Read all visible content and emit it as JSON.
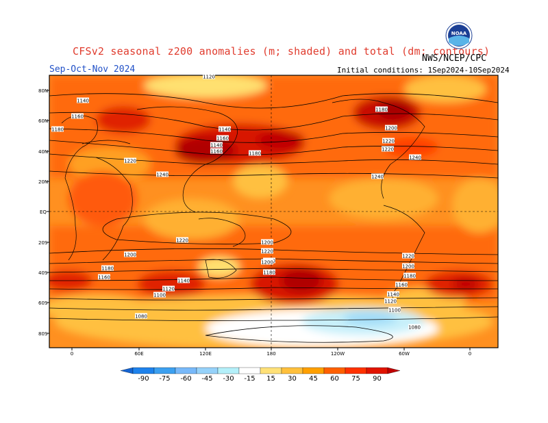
{
  "header": {
    "title": "CFSv2 seasonal z200 anomalies (m; shaded) and total (dm; contours)",
    "season": "Sep-Oct-Nov 2024",
    "initial_conditions": "Initial conditions: 1Sep2024-10Sep2024",
    "agency": "NWS/NCEP/CPC",
    "logo_text": "NOAA"
  },
  "map": {
    "lat_labels": [
      "80N",
      "60N",
      "40N",
      "20N",
      "EQ",
      "20S",
      "40S",
      "60S",
      "80S"
    ],
    "lon_labels": [
      "0",
      "60E",
      "120E",
      "180",
      "120W",
      "60W",
      "0"
    ],
    "contour_labels": [
      {
        "text": "1120"
      },
      {
        "text": "1140"
      },
      {
        "text": "1160"
      },
      {
        "text": "1180"
      },
      {
        "text": "1140"
      },
      {
        "text": "1160"
      },
      {
        "text": "1140"
      },
      {
        "text": "1160"
      },
      {
        "text": "1180"
      },
      {
        "text": "1200"
      },
      {
        "text": "1220"
      },
      {
        "text": "1220"
      },
      {
        "text": "1240"
      },
      {
        "text": "1220"
      },
      {
        "text": "1180"
      },
      {
        "text": "1200"
      },
      {
        "text": "1220"
      },
      {
        "text": "1240"
      },
      {
        "text": "1240"
      },
      {
        "text": "1220"
      },
      {
        "text": "1200"
      },
      {
        "text": "1180"
      },
      {
        "text": "1160"
      },
      {
        "text": "1140"
      },
      {
        "text": "1120"
      },
      {
        "text": "1100"
      },
      {
        "text": "1080"
      },
      {
        "text": "1220"
      },
      {
        "text": "1200"
      },
      {
        "text": "1180"
      },
      {
        "text": "1220"
      },
      {
        "text": "1200"
      },
      {
        "text": "1180"
      },
      {
        "text": "1160"
      },
      {
        "text": "1140"
      },
      {
        "text": "1120"
      },
      {
        "text": "1100"
      },
      {
        "text": "1080"
      }
    ]
  },
  "colorbar": {
    "labels": [
      "-90",
      "-75",
      "-60",
      "-45",
      "-30",
      "-15",
      "15",
      "30",
      "45",
      "60",
      "75",
      "90"
    ],
    "colors": [
      "#1464d2",
      "#1e82ec",
      "#3ca0f0",
      "#78b9fa",
      "#96d2fa",
      "#b4f0fa",
      "#ffffff",
      "#ffe178",
      "#ffc03c",
      "#ffa000",
      "#ff6000",
      "#ff3200",
      "#e11400",
      "#c00000"
    ]
  }
}
